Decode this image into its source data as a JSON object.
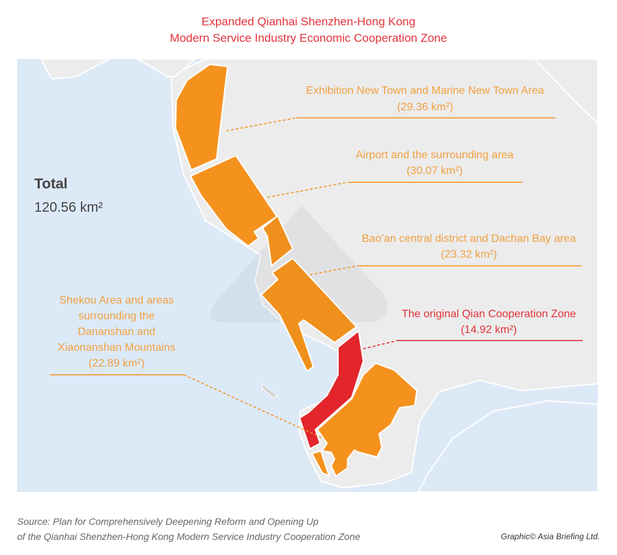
{
  "title": {
    "line1": "Expanded Qianhai Shenzhen-Hong Kong",
    "line2": "Modern Service Industry Economic Cooperation Zone"
  },
  "total": {
    "label": "Total",
    "value": "120.56 km²"
  },
  "zones": [
    {
      "name": "Exhibition New Town and Marine New Town Area",
      "area": "(29.36 km²)",
      "color": "#f5921e"
    },
    {
      "name": "Airport and the surrounding area",
      "area": "(30.07 km²)",
      "color": "#f5921e"
    },
    {
      "name": "Bao’an central district and Dachan Bay area",
      "area": "(23.32 km²)",
      "color": "#f5921e"
    },
    {
      "name": "The original Qian Cooperation Zone",
      "area": "(14.92 km²)",
      "color": "#e2262b"
    },
    {
      "name_lines": [
        "Shekou Area and areas",
        "surrounding the",
        "Dananshan and",
        "Xiaonanshan Mountains"
      ],
      "area": "(22.89 km²)",
      "color": "#f5921e"
    }
  ],
  "colors": {
    "water": "#dce9f7",
    "land": "#ececec",
    "title": "#e2333a",
    "label_orange": "#f0a040"
  },
  "source": {
    "line1": "Source: Plan for Comprehensively Deepening Reform and Opening Up",
    "line2": "of the Qianhai Shenzhen-Hong Kong Modern Service Industry Cooperation Zone"
  },
  "credit": "Graphic© Asia Briefing Ltd."
}
